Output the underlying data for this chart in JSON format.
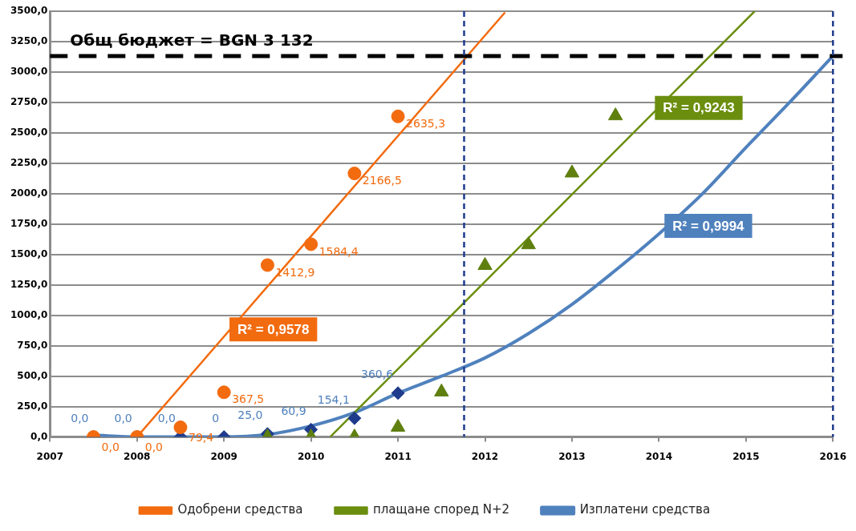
{
  "chart_data": {
    "type": "scatter",
    "xlim": [
      2007,
      2016
    ],
    "xticks": [
      2007,
      2008,
      2009,
      2010,
      2011,
      2012,
      2013,
      2014,
      2015,
      2016
    ],
    "ylim": [
      0,
      3500
    ],
    "yticks": [
      {
        "value": 0,
        "label": "0,0"
      },
      {
        "value": 250,
        "label": "250,0"
      },
      {
        "value": 500,
        "label": "500,0"
      },
      {
        "value": 750,
        "label": "750,0"
      },
      {
        "value": 1000,
        "label": "1000,0"
      },
      {
        "value": 1250,
        "label": "1250,0"
      },
      {
        "value": 1500,
        "label": "1500,0"
      },
      {
        "value": 1750,
        "label": "1750,0"
      },
      {
        "value": 2000,
        "label": "2000,0"
      },
      {
        "value": 2250,
        "label": "2250,0"
      },
      {
        "value": 2500,
        "label": "2500,0"
      },
      {
        "value": 2750,
        "label": "2750,0"
      },
      {
        "value": 3000,
        "label": "3000,0"
      },
      {
        "value": 3250,
        "label": "3250,0"
      },
      {
        "value": 3500,
        "label": "3500,0"
      }
    ],
    "grid": "y",
    "legend": "bottom",
    "series": [
      {
        "type": "scatter",
        "marker": "circle",
        "color": "#f26b0f",
        "x": [
          2007.5,
          2008,
          2008.5,
          2009,
          2009.5,
          2010,
          2010.5,
          2011
        ],
        "values": [
          0,
          0,
          79.4,
          367.5,
          1412.9,
          1584.4,
          2166.5,
          2635.3
        ],
        "value_labels": [
          "0,0",
          "0,0",
          "79,4",
          "367,5",
          "1412,9",
          "1584,4",
          "2166,5",
          "2635,3"
        ]
      },
      {
        "type": "scatter",
        "marker": "triangle",
        "color": "#5f7f0f",
        "x": [
          2009.5,
          2010,
          2010.5,
          2011,
          2011.5,
          2012,
          2012.5,
          2013,
          2013.5
        ],
        "values": [
          0,
          0,
          0,
          80,
          370,
          1410,
          1580,
          2170,
          2640
        ]
      },
      {
        "type": "scatter",
        "marker": "diamond",
        "color": "#1f3b8c",
        "x": [
          2007.5,
          2008,
          2008.5,
          2009,
          2009.5,
          2010,
          2010.5,
          2011
        ],
        "values": [
          0,
          0,
          0,
          0,
          25,
          60.9,
          154.1,
          360.6
        ],
        "value_labels": [
          "0,0",
          "0,0",
          "0,0",
          "0",
          "25,0",
          "60,9",
          "154,1",
          "360,6"
        ]
      },
      {
        "type": "line",
        "name": "Одобрени средства",
        "color": "#f26b0f",
        "x": [
          2008,
          2012.23
        ],
        "values": [
          0,
          3490
        ]
      },
      {
        "type": "line",
        "name": "плащане според N+2",
        "color": "#6b8e0e",
        "x": [
          2010.22,
          2015.1
        ],
        "values": [
          0,
          3500
        ]
      },
      {
        "type": "line",
        "name": "Изплатени средства",
        "color": "#4f81bd",
        "x": [
          2007.5,
          2008,
          2008.5,
          2009,
          2009.5,
          2010,
          2010.5,
          2011,
          2011.5,
          2012,
          2012.5,
          2013,
          2013.5,
          2014,
          2014.5,
          2015,
          2015.5,
          2016
        ],
        "values": [
          15,
          0,
          0,
          0,
          20,
          90,
          200,
          360,
          500,
          650,
          850,
          1090,
          1370,
          1670,
          2000,
          2380,
          2750,
          3132
        ]
      }
    ],
    "ref_lines": [
      {
        "axis": "y",
        "value": 3132,
        "label": "Общ бюджет = BGN 3 132",
        "color": "#000000",
        "line_style": "dashed"
      },
      {
        "axis": "x",
        "value": 2011.76,
        "color": "#1f3b8c",
        "line_style": "dashed"
      },
      {
        "axis": "x",
        "value": 2016,
        "color": "#1f3b8c",
        "line_style": "dashed"
      }
    ],
    "annotations": [
      {
        "text": "R² = 0,9578",
        "x": 2009.1,
        "y": 885
      },
      {
        "text": "R² = 0,9243",
        "x": 2013.99,
        "y": 2705
      },
      {
        "text": "R² = 0,9994",
        "x": 2014.1,
        "y": 1735
      }
    ]
  }
}
